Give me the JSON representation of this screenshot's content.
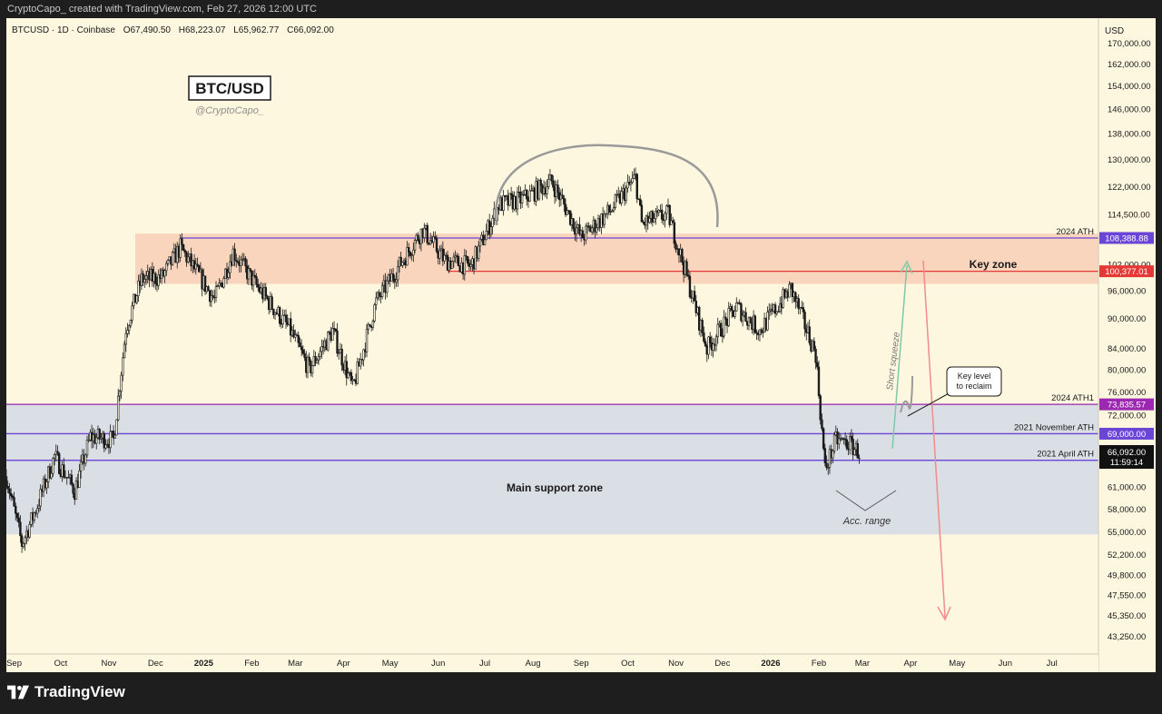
{
  "header": {
    "attribution": "CryptoCapo_ created with TradingView.com, Feb 27, 2026 12:00 UTC"
  },
  "footer": {
    "brand": "TradingView"
  },
  "colors": {
    "background": "#fdf7df",
    "key_zone_fill": "#f7c9b3",
    "support_zone_fill": "#d4d9e6",
    "line_purple": "#6b46d6",
    "line_magenta": "#9c27b0",
    "line_red": "#e53935",
    "arrow_green": "#7fc8a9",
    "arrow_red": "#f28b8b",
    "candle": "#1a1a1a"
  },
  "chart_data": {
    "type": "candlestick",
    "symbol_line": {
      "symbol": "BTCUSD · 1D · Coinbase",
      "open": "O67,490.50",
      "high": "H68,223.07",
      "low": "L65,962.77",
      "close": "C66,092.00"
    },
    "title_box": "BTC/USD",
    "watermark": "@CryptoCapo_",
    "y_axis": {
      "unit": "USD",
      "scale": "log",
      "range": [
        41500,
        180000
      ],
      "ticks": [
        {
          "value": 170000,
          "label": "170,000.00"
        },
        {
          "value": 162000,
          "label": "162,000.00"
        },
        {
          "value": 154000,
          "label": "154,000.00"
        },
        {
          "value": 146000,
          "label": "146,000.00"
        },
        {
          "value": 138000,
          "label": "138,000.00"
        },
        {
          "value": 130000,
          "label": "130,000.00"
        },
        {
          "value": 122000,
          "label": "122,000.00"
        },
        {
          "value": 114500,
          "label": "114,500.00"
        },
        {
          "value": 102000,
          "label": "102,000.00"
        },
        {
          "value": 96000,
          "label": "96,000.00"
        },
        {
          "value": 90000,
          "label": "90,000.00"
        },
        {
          "value": 84000,
          "label": "84,000.00"
        },
        {
          "value": 80000,
          "label": "80,000.00"
        },
        {
          "value": 76000,
          "label": "76,000.00"
        },
        {
          "value": 72000,
          "label": "72,000.00"
        },
        {
          "value": 61000,
          "label": "61,000.00"
        },
        {
          "value": 58000,
          "label": "58,000.00"
        },
        {
          "value": 55000,
          "label": "55,000.00"
        },
        {
          "value": 52200,
          "label": "52,200.00"
        },
        {
          "value": 49800,
          "label": "49,800.00"
        },
        {
          "value": 47550,
          "label": "47,550.00"
        },
        {
          "value": 45350,
          "label": "45,350.00"
        },
        {
          "value": 43250,
          "label": "43,250.00"
        }
      ]
    },
    "x_axis": {
      "range": [
        "2024-08-27",
        "2026-07-31"
      ],
      "ticks": [
        {
          "date": "2024-09-01",
          "label": "Sep",
          "bold": false
        },
        {
          "date": "2024-10-01",
          "label": "Oct",
          "bold": false
        },
        {
          "date": "2024-11-01",
          "label": "Nov",
          "bold": false
        },
        {
          "date": "2024-12-01",
          "label": "Dec",
          "bold": false
        },
        {
          "date": "2025-01-01",
          "label": "2025",
          "bold": true
        },
        {
          "date": "2025-02-01",
          "label": "Feb",
          "bold": false
        },
        {
          "date": "2025-03-01",
          "label": "Mar",
          "bold": false
        },
        {
          "date": "2025-04-01",
          "label": "Apr",
          "bold": false
        },
        {
          "date": "2025-05-01",
          "label": "May",
          "bold": false
        },
        {
          "date": "2025-06-01",
          "label": "Jun",
          "bold": false
        },
        {
          "date": "2025-07-01",
          "label": "Jul",
          "bold": false
        },
        {
          "date": "2025-08-01",
          "label": "Aug",
          "bold": false
        },
        {
          "date": "2025-09-01",
          "label": "Sep",
          "bold": false
        },
        {
          "date": "2025-10-01",
          "label": "Oct",
          "bold": false
        },
        {
          "date": "2025-11-01",
          "label": "Nov",
          "bold": false
        },
        {
          "date": "2025-12-01",
          "label": "Dec",
          "bold": false
        },
        {
          "date": "2026-01-01",
          "label": "2026",
          "bold": true
        },
        {
          "date": "2026-02-01",
          "label": "Feb",
          "bold": false
        },
        {
          "date": "2026-03-01",
          "label": "Mar",
          "bold": false
        },
        {
          "date": "2026-04-01",
          "label": "Apr",
          "bold": false
        },
        {
          "date": "2026-05-01",
          "label": "May",
          "bold": false
        },
        {
          "date": "2026-06-01",
          "label": "Jun",
          "bold": false
        },
        {
          "date": "2026-07-01",
          "label": "Jul",
          "bold": false
        }
      ]
    },
    "zones": [
      {
        "name": "Key zone",
        "label": "Key zone",
        "from": 97500,
        "to": 109500,
        "x_start": "2024-11-18",
        "color": "#f7c9b3"
      },
      {
        "name": "Main support zone",
        "label": "Main support zone",
        "from": 54700,
        "to": 73835.57,
        "x_start": "2024-08-27",
        "color": "#d4d9e6"
      }
    ],
    "levels": [
      {
        "name": "2024 ATH",
        "label": "2024 ATH",
        "value": 108388.88,
        "badge": "108,388.88",
        "x_start": "2024-12-17",
        "color": "#6b46d6"
      },
      {
        "name": "red level",
        "label": "",
        "value": 100377.01,
        "badge": "100,377.01",
        "x_start": "2025-06-07",
        "color": "#e53935"
      },
      {
        "name": "2024 ATH1",
        "label": "2024 ATH1",
        "value": 73835.57,
        "badge": "73,835.57",
        "x_start": "2024-08-27",
        "color": "#9c27b0"
      },
      {
        "name": "2021 November ATH",
        "label": "2021 November ATH",
        "value": 69000,
        "badge": "69,000.00",
        "x_start": "2024-08-27",
        "color": "#6b46d6"
      },
      {
        "name": "2021 April ATH",
        "label": "2021 April ATH",
        "value": 64899,
        "badge": "64,899.00",
        "x_start": "2024-08-27",
        "color": "#6b46d6"
      }
    ],
    "last_price": {
      "value": 66092,
      "label": "66,092.00",
      "countdown": "11:59:14"
    },
    "annotations": [
      {
        "id": "short-squeeze",
        "text": "Short squeeze"
      },
      {
        "id": "key-level-callout",
        "text_lines": [
          "Key level",
          "to reclaim"
        ]
      },
      {
        "id": "acc-range",
        "text": "Acc. range"
      }
    ],
    "candle_path_close": [
      {
        "date": "2024-08-27",
        "value": 62500
      },
      {
        "date": "2024-09-06",
        "value": 53500
      },
      {
        "date": "2024-09-16",
        "value": 58500
      },
      {
        "date": "2024-09-27",
        "value": 65500
      },
      {
        "date": "2024-10-10",
        "value": 60500
      },
      {
        "date": "2024-10-20",
        "value": 68500
      },
      {
        "date": "2024-11-04",
        "value": 68000
      },
      {
        "date": "2024-11-12",
        "value": 88000
      },
      {
        "date": "2024-11-22",
        "value": 98500
      },
      {
        "date": "2024-12-05",
        "value": 99000
      },
      {
        "date": "2024-12-17",
        "value": 106000
      },
      {
        "date": "2025-01-08",
        "value": 94000
      },
      {
        "date": "2025-01-20",
        "value": 105000
      },
      {
        "date": "2025-02-03",
        "value": 97500
      },
      {
        "date": "2025-02-25",
        "value": 88000
      },
      {
        "date": "2025-03-10",
        "value": 80000
      },
      {
        "date": "2025-03-25",
        "value": 87500
      },
      {
        "date": "2025-04-07",
        "value": 76500
      },
      {
        "date": "2025-04-22",
        "value": 93500
      },
      {
        "date": "2025-05-10",
        "value": 103500
      },
      {
        "date": "2025-05-22",
        "value": 110500
      },
      {
        "date": "2025-06-05",
        "value": 103000
      },
      {
        "date": "2025-06-22",
        "value": 101500
      },
      {
        "date": "2025-07-10",
        "value": 117000
      },
      {
        "date": "2025-07-25",
        "value": 118500
      },
      {
        "date": "2025-08-13",
        "value": 123500
      },
      {
        "date": "2025-09-01",
        "value": 108500
      },
      {
        "date": "2025-09-20",
        "value": 115500
      },
      {
        "date": "2025-10-06",
        "value": 124500
      },
      {
        "date": "2025-10-10",
        "value": 112000
      },
      {
        "date": "2025-10-27",
        "value": 114500
      },
      {
        "date": "2025-11-05",
        "value": 103000
      },
      {
        "date": "2025-11-21",
        "value": 84000
      },
      {
        "date": "2025-12-10",
        "value": 92500
      },
      {
        "date": "2025-12-25",
        "value": 87500
      },
      {
        "date": "2026-01-14",
        "value": 96500
      },
      {
        "date": "2026-01-30",
        "value": 83000
      },
      {
        "date": "2026-02-05",
        "value": 63500
      },
      {
        "date": "2026-02-12",
        "value": 68000
      },
      {
        "date": "2026-02-20",
        "value": 67500
      },
      {
        "date": "2026-02-27",
        "value": 66092
      }
    ]
  }
}
